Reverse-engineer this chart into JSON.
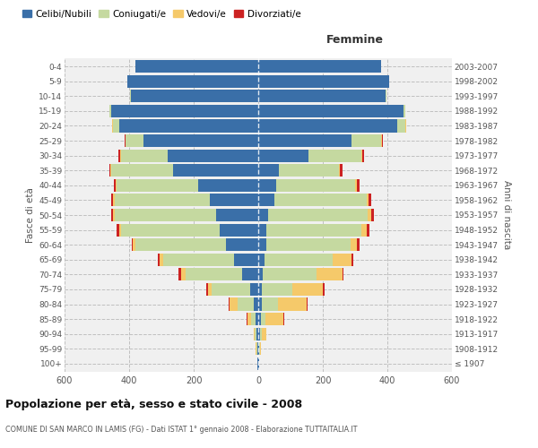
{
  "age_groups": [
    "100+",
    "95-99",
    "90-94",
    "85-89",
    "80-84",
    "75-79",
    "70-74",
    "65-69",
    "60-64",
    "55-59",
    "50-54",
    "45-49",
    "40-44",
    "35-39",
    "30-34",
    "25-29",
    "20-24",
    "15-19",
    "10-14",
    "5-9",
    "0-4"
  ],
  "birth_years": [
    "≤ 1907",
    "1908-1912",
    "1913-1917",
    "1918-1922",
    "1923-1927",
    "1928-1932",
    "1933-1937",
    "1938-1942",
    "1943-1947",
    "1948-1952",
    "1953-1957",
    "1958-1962",
    "1963-1967",
    "1968-1972",
    "1973-1977",
    "1978-1982",
    "1983-1987",
    "1988-1992",
    "1993-1997",
    "1998-2002",
    "2003-2007"
  ],
  "colors": {
    "celibe": "#3a6fa8",
    "coniugato": "#c5d9a0",
    "vedovo": "#f5c96a",
    "divorziato": "#cc2222"
  },
  "male_celibe": [
    2,
    3,
    5,
    8,
    15,
    25,
    50,
    75,
    100,
    120,
    130,
    150,
    185,
    265,
    280,
    355,
    430,
    455,
    395,
    405,
    380
  ],
  "male_coniugato": [
    0,
    2,
    5,
    15,
    50,
    120,
    175,
    220,
    280,
    305,
    315,
    295,
    255,
    190,
    145,
    55,
    20,
    5,
    2,
    0,
    0
  ],
  "male_vedovo": [
    0,
    2,
    5,
    10,
    25,
    10,
    15,
    10,
    8,
    5,
    5,
    5,
    3,
    2,
    2,
    2,
    2,
    0,
    0,
    0,
    0
  ],
  "male_divorziato": [
    0,
    0,
    0,
    2,
    2,
    5,
    8,
    5,
    5,
    8,
    5,
    5,
    5,
    5,
    5,
    3,
    2,
    0,
    0,
    0,
    0
  ],
  "female_nubile": [
    2,
    3,
    5,
    8,
    10,
    10,
    15,
    20,
    25,
    25,
    30,
    50,
    55,
    65,
    155,
    290,
    430,
    450,
    395,
    405,
    380
  ],
  "female_coniugata": [
    0,
    2,
    5,
    15,
    50,
    95,
    165,
    210,
    260,
    295,
    310,
    285,
    245,
    185,
    165,
    90,
    25,
    5,
    2,
    0,
    0
  ],
  "female_vedova": [
    0,
    3,
    15,
    55,
    90,
    95,
    80,
    60,
    20,
    15,
    10,
    8,
    5,
    3,
    2,
    2,
    2,
    0,
    0,
    0,
    0
  ],
  "female_divorziata": [
    0,
    0,
    0,
    2,
    2,
    5,
    5,
    5,
    10,
    10,
    8,
    8,
    8,
    8,
    5,
    3,
    2,
    0,
    0,
    0,
    0
  ],
  "title": "Popolazione per età, sesso e stato civile - 2008",
  "subtitle": "COMUNE DI SAN MARCO IN LAMIS (FG) - Dati ISTAT 1° gennaio 2008 - Elaborazione TUTTAITALIA.IT",
  "xlabel_right": "Femmine",
  "ylabel_left": "Fasce di età",
  "ylabel_right": "Anni di nascita",
  "xlim": 600,
  "bg_color": "#ffffff",
  "plot_bg": "#f0f0f0",
  "grid_color": "#cccccc"
}
